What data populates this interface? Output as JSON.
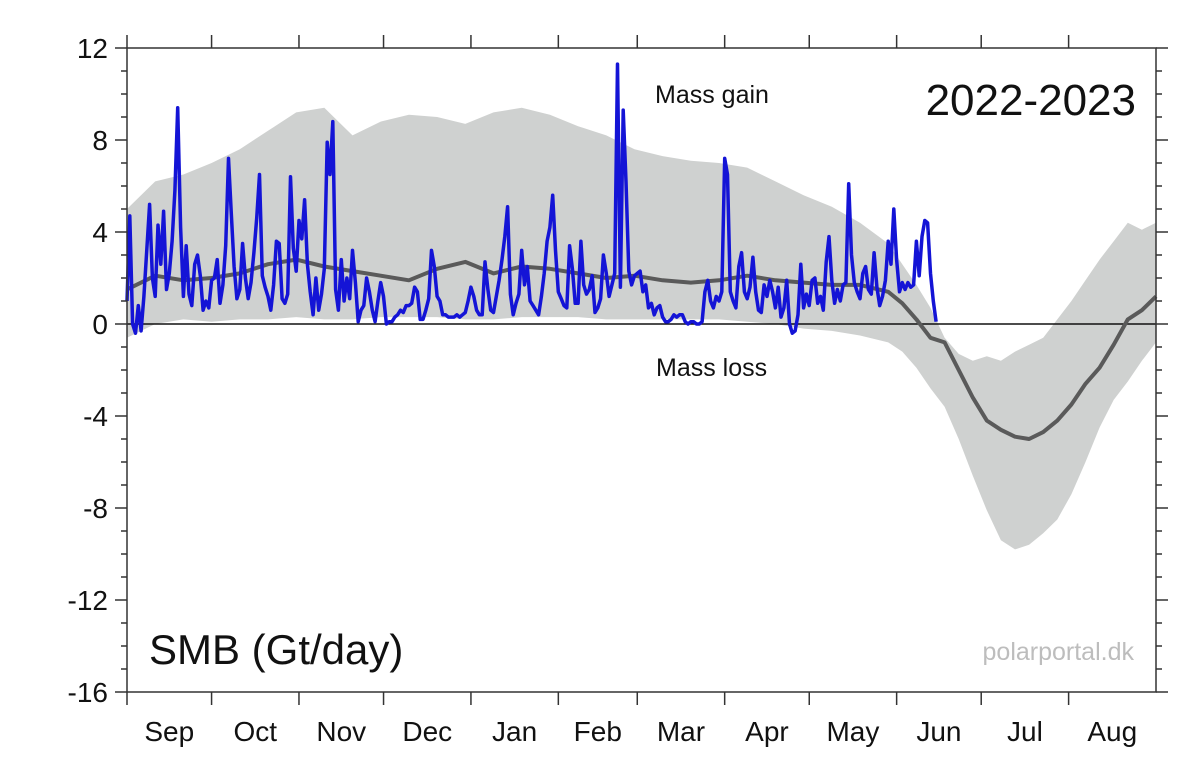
{
  "chart_data": {
    "type": "line",
    "ylabel": "SMB (Gt/day)",
    "season": "2022-2023",
    "annotations": {
      "gain": "Mass gain",
      "loss": "Mass loss"
    },
    "credit": "polarportal.dk",
    "ylim": [
      -16,
      12
    ],
    "yticks": [
      12,
      8,
      4,
      0,
      -4,
      -8,
      -12,
      -16
    ],
    "day_range": [
      0,
      365
    ],
    "months": [
      "Sep",
      "Oct",
      "Nov",
      "Dec",
      "Jan",
      "Feb",
      "Mar",
      "Apr",
      "May",
      "Jun",
      "Jul",
      "Aug"
    ],
    "month_start_day": [
      0,
      30,
      61,
      91,
      122,
      153,
      181,
      212,
      242,
      273,
      303,
      334
    ],
    "grid": false,
    "colors": {
      "current": "#1414d6",
      "mean": "#5a5a5a",
      "range": "#cfd1d0"
    },
    "series": [
      {
        "name": "2022-2023",
        "x": [
          0,
          1,
          2,
          3,
          4,
          5,
          6,
          8,
          9,
          10,
          11,
          12,
          13,
          14,
          15,
          16,
          17,
          18,
          19,
          20,
          21,
          22,
          23,
          24,
          25,
          26,
          27,
          28,
          29,
          30,
          31,
          32,
          33,
          34,
          35,
          36,
          37,
          38,
          39,
          40,
          41,
          42,
          43,
          44,
          45,
          46,
          47,
          48,
          49,
          50,
          51,
          52,
          53,
          54,
          55,
          56,
          57,
          58,
          59,
          60,
          61,
          62,
          63,
          64,
          65,
          66,
          67,
          68,
          69,
          70,
          71,
          72,
          73,
          74,
          75,
          76,
          77,
          78,
          79,
          80,
          81,
          82,
          83,
          84,
          85,
          86,
          87,
          88,
          89,
          90,
          91,
          92,
          93,
          94,
          95,
          96,
          97,
          98,
          99,
          100,
          101,
          102,
          103,
          104,
          105,
          106,
          107,
          108,
          109,
          110,
          111,
          112,
          113,
          114,
          115,
          116,
          117,
          118,
          119,
          120,
          121,
          122,
          123,
          124,
          125,
          126,
          127,
          128,
          129,
          130,
          131,
          132,
          133,
          134,
          135,
          136,
          137,
          138,
          139,
          140,
          141,
          142,
          143,
          144,
          145,
          146,
          147,
          148,
          149,
          150,
          151,
          152,
          153,
          154,
          155,
          156,
          157,
          158,
          159,
          160,
          161,
          162,
          163,
          164,
          165,
          166,
          167,
          168,
          169,
          170,
          171,
          172,
          173,
          174,
          175,
          176,
          177,
          178,
          179,
          180,
          181,
          182,
          183,
          184,
          185,
          186,
          187,
          188,
          189,
          190,
          191,
          192,
          193,
          194,
          195,
          196,
          197,
          198,
          199,
          200,
          201,
          202,
          203,
          204,
          205,
          206,
          207,
          208,
          209,
          210,
          211,
          212,
          213,
          214,
          215,
          216,
          217,
          218,
          219,
          220,
          221,
          222,
          223,
          224,
          225,
          226,
          227,
          228,
          229,
          230,
          231,
          232,
          233,
          234,
          235,
          236,
          237,
          238,
          239,
          240,
          241,
          242,
          243,
          244,
          245,
          246,
          247,
          248,
          249,
          250,
          251,
          252,
          253,
          254,
          255,
          256,
          257,
          258,
          259,
          260,
          261,
          262,
          263,
          264,
          265,
          266,
          267,
          268,
          269,
          270,
          271,
          272,
          273,
          274,
          275,
          276,
          277,
          278,
          279,
          280,
          281,
          282,
          283,
          284,
          285,
          286,
          287
        ],
        "values": [
          1.0,
          4.7,
          0.0,
          -0.4,
          0.8,
          -0.3,
          1.2,
          5.2,
          2.0,
          1.2,
          4.3,
          2.6,
          4.9,
          1.5,
          2.2,
          3.6,
          5.8,
          9.4,
          4.2,
          1.2,
          3.4,
          1.3,
          0.8,
          2.6,
          3.0,
          2.1,
          0.6,
          1.0,
          0.7,
          1.9,
          2.0,
          2.8,
          0.9,
          1.7,
          3.4,
          7.2,
          4.8,
          2.5,
          1.1,
          1.5,
          3.5,
          2.0,
          1.1,
          1.8,
          3.1,
          4.6,
          6.5,
          2.1,
          1.6,
          1.2,
          0.6,
          1.7,
          3.6,
          3.5,
          1.1,
          0.9,
          1.3,
          6.4,
          3.3,
          2.3,
          4.5,
          3.7,
          5.4,
          2.6,
          1.4,
          0.4,
          2.0,
          0.6,
          1.3,
          2.4,
          7.9,
          6.5,
          8.8,
          1.5,
          0.6,
          2.8,
          1.0,
          2.0,
          1.1,
          3.2,
          1.8,
          0.1,
          0.6,
          0.8,
          2.0,
          1.4,
          0.6,
          0.1,
          1.0,
          1.8,
          1.2,
          0.0,
          0.1,
          0.1,
          0.3,
          0.4,
          0.6,
          0.5,
          0.8,
          0.8,
          0.9,
          1.6,
          1.4,
          0.2,
          0.2,
          0.6,
          1.1,
          3.2,
          2.5,
          1.2,
          1.0,
          0.4,
          0.4,
          0.3,
          0.3,
          0.3,
          0.4,
          0.3,
          0.4,
          0.5,
          1.0,
          1.6,
          1.2,
          0.6,
          0.4,
          0.4,
          2.7,
          1.5,
          0.6,
          0.5,
          1.2,
          1.9,
          2.8,
          3.8,
          5.1,
          1.3,
          0.4,
          0.9,
          1.3,
          3.2,
          1.7,
          2.5,
          1.0,
          0.8,
          0.6,
          0.4,
          1.2,
          2.2,
          3.6,
          4.2,
          5.6,
          3.2,
          1.4,
          1.1,
          0.8,
          0.7,
          3.4,
          2.4,
          0.9,
          0.9,
          3.6,
          1.7,
          1.3,
          1.5,
          2.1,
          0.5,
          0.7,
          1.1,
          3.0,
          2.2,
          1.2,
          1.7,
          2.2,
          11.3,
          1.6,
          9.3,
          6.2,
          2.3,
          1.7,
          2.1,
          2.2,
          2.3,
          1.4,
          1.7,
          0.7,
          0.9,
          0.4,
          0.7,
          0.8,
          0.3,
          0.1,
          0.1,
          0.2,
          0.4,
          0.3,
          0.4,
          0.4,
          0.1,
          0.0,
          0.1,
          0.1,
          0.0,
          0.0,
          0.1,
          1.4,
          1.9,
          1.0,
          0.7,
          1.2,
          1.0,
          1.4,
          7.2,
          6.5,
          1.4,
          1.0,
          0.7,
          2.5,
          3.1,
          1.4,
          1.1,
          1.6,
          2.9,
          1.4,
          0.6,
          0.5,
          1.7,
          1.2,
          1.9,
          1.4,
          0.7,
          1.6,
          0.3,
          0.7,
          1.9,
          0.0,
          -0.4,
          -0.3,
          0.4,
          2.6,
          0.7,
          1.3,
          0.8,
          1.9,
          2.0,
          0.9,
          1.2,
          0.6,
          2.7,
          3.8,
          1.9,
          0.9,
          1.5,
          1.0,
          1.7,
          1.8,
          6.1,
          3.0,
          1.8,
          1.4,
          1.1,
          2.2,
          2.5,
          1.5,
          1.3,
          3.1,
          1.6,
          0.8,
          1.2,
          1.9,
          3.6,
          2.6,
          5.0,
          2.8,
          1.4,
          1.8,
          1.5,
          1.8,
          1.6,
          1.7,
          3.6,
          2.1,
          3.8,
          4.5,
          4.4,
          2.2,
          1.0,
          0.1
        ]
      },
      {
        "name": "mean",
        "x": [
          0,
          10,
          20,
          30,
          40,
          50,
          60,
          70,
          80,
          90,
          100,
          110,
          120,
          130,
          140,
          150,
          160,
          170,
          180,
          190,
          200,
          210,
          220,
          230,
          240,
          250,
          260,
          270,
          275,
          280,
          285,
          290,
          295,
          300,
          305,
          310,
          315,
          320,
          325,
          330,
          335,
          340,
          345,
          350,
          355,
          360,
          365
        ],
        "values": [
          1.5,
          2.1,
          1.9,
          2.0,
          2.2,
          2.6,
          2.8,
          2.5,
          2.3,
          2.1,
          1.9,
          2.4,
          2.7,
          2.2,
          2.5,
          2.4,
          2.2,
          2.0,
          2.1,
          1.9,
          1.8,
          1.9,
          2.1,
          1.9,
          1.8,
          1.7,
          1.7,
          1.4,
          0.9,
          0.2,
          -0.6,
          -0.8,
          -2.0,
          -3.2,
          -4.2,
          -4.6,
          -4.9,
          -5.0,
          -4.7,
          -4.2,
          -3.5,
          -2.6,
          -1.9,
          -0.9,
          0.2,
          0.6,
          1.2
        ]
      },
      {
        "name": "range",
        "x": [
          0,
          10,
          20,
          30,
          40,
          50,
          60,
          70,
          80,
          90,
          100,
          110,
          120,
          130,
          140,
          150,
          160,
          170,
          180,
          190,
          200,
          210,
          220,
          230,
          240,
          250,
          260,
          270,
          275,
          280,
          285,
          290,
          295,
          300,
          305,
          310,
          315,
          320,
          325,
          330,
          335,
          340,
          345,
          350,
          355,
          360,
          365
        ],
        "upper": [
          5.0,
          6.2,
          6.5,
          7.0,
          7.6,
          8.4,
          9.2,
          9.4,
          8.2,
          8.8,
          9.1,
          9.0,
          8.7,
          9.2,
          9.4,
          9.1,
          8.6,
          8.2,
          7.6,
          7.3,
          7.1,
          7.0,
          6.8,
          6.2,
          5.6,
          5.1,
          4.4,
          3.5,
          2.6,
          1.7,
          0.7,
          -0.6,
          -1.3,
          -1.6,
          -1.4,
          -1.6,
          -1.2,
          -0.9,
          -0.6,
          0.2,
          1.0,
          1.9,
          2.8,
          3.6,
          4.4,
          4.1,
          4.4
        ],
        "lower": [
          -0.6,
          0.0,
          0.2,
          0.1,
          0.2,
          0.2,
          0.3,
          0.2,
          0.2,
          0.3,
          0.3,
          0.3,
          0.2,
          0.2,
          0.3,
          0.3,
          0.3,
          0.2,
          0.2,
          0.2,
          0.2,
          0.2,
          0.1,
          0.0,
          -0.2,
          -0.3,
          -0.5,
          -0.8,
          -1.2,
          -1.9,
          -2.8,
          -3.6,
          -5.0,
          -6.6,
          -8.1,
          -9.4,
          -9.8,
          -9.6,
          -9.1,
          -8.5,
          -7.4,
          -6.0,
          -4.5,
          -3.3,
          -2.5,
          -1.6,
          -0.8
        ]
      }
    ]
  }
}
